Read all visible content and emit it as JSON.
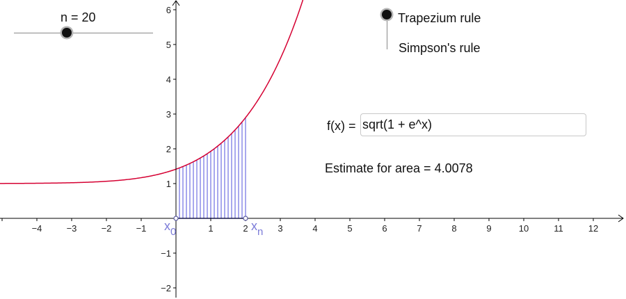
{
  "slider": {
    "label": "n = 20",
    "value": 20
  },
  "rules": {
    "options": [
      "Trapezium rule",
      "Simpson's rule"
    ],
    "selected": "Trapezium rule"
  },
  "function": {
    "label": "f(x) =",
    "value": "sqrt(1 + e^x)"
  },
  "estimate": {
    "label": "Estimate for area = 4.0078"
  },
  "graph": {
    "x_ticks": [
      "−4",
      "−3",
      "−2",
      "−1",
      "1",
      "2",
      "3",
      "4",
      "5",
      "6",
      "7",
      "8",
      "9",
      "10",
      "11",
      "12"
    ],
    "y_ticks": [
      "6",
      "5",
      "4",
      "3",
      "2",
      "1",
      "−1",
      "−2"
    ],
    "x0_label": "x",
    "x0_sub": "0",
    "xn_label": "x",
    "xn_sub": "n",
    "colors": {
      "curve": "#d50032",
      "strips": "#5050dd",
      "points": "#5a5aa0",
      "axis": "#000000"
    }
  },
  "chart_data": {
    "type": "line",
    "function": "sqrt(1 + e^x)",
    "interval": [
      0,
      2
    ],
    "n": 20,
    "xlim": [
      -5,
      13
    ],
    "ylim": [
      -2.3,
      6.2
    ]
  }
}
